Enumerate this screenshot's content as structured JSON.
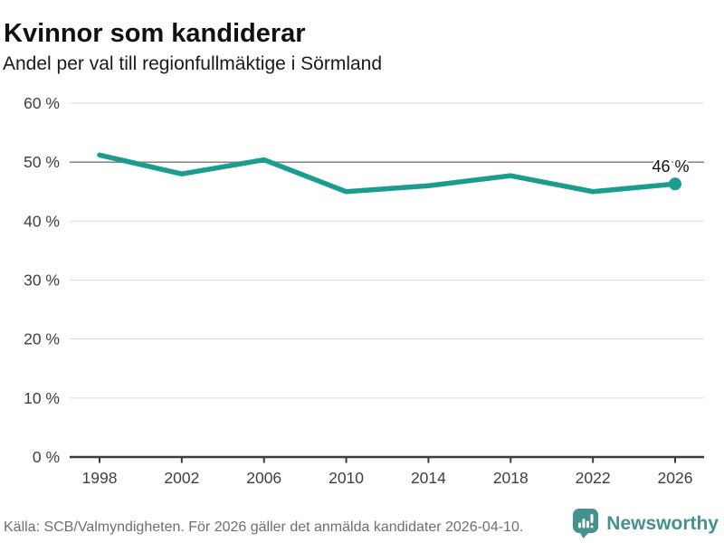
{
  "header": {
    "title": "Kvinnor som kandiderar",
    "subtitle": "Andel per val till regionfullmäktige i Sörmland"
  },
  "chart_data": {
    "type": "line",
    "title": "Kvinnor som kandiderar",
    "subtitle": "Andel per val till regionfullmäktige i Sörmland",
    "x": [
      1998,
      2002,
      2006,
      2010,
      2014,
      2018,
      2022,
      2026
    ],
    "values": [
      51.2,
      48,
      50.4,
      45,
      46,
      47.7,
      45,
      46.3
    ],
    "end_point_label": "46 %",
    "xlabel": "",
    "ylabel": "",
    "ylim": [
      0,
      60
    ],
    "yticks": {
      "values": [
        0,
        10,
        20,
        30,
        40,
        50,
        60
      ],
      "labels": [
        "0 %",
        "10 %",
        "20 %",
        "30 %",
        "40 %",
        "50 %",
        "60 %"
      ]
    },
    "grid": true,
    "emphasized_gridline_value": 50,
    "legend": "none"
  },
  "colors": {
    "line": "#1a9d8f",
    "point": "#1a9d8f",
    "grid": "#dcdcdc",
    "grid_emphasis": "#8a8a8a",
    "axis": "#3a3a3a",
    "tick_label": "#3f3f3f",
    "end_label_text": "#111111",
    "title_text": "#111111",
    "footer_text": "#6f6f6f",
    "brand": "#45918e"
  },
  "footer": {
    "source": "Källa: SCB/Valmyndigheten. För 2026 gäller det anmälda kandidater 2026-04-10.",
    "brand": "Newsworthy"
  }
}
